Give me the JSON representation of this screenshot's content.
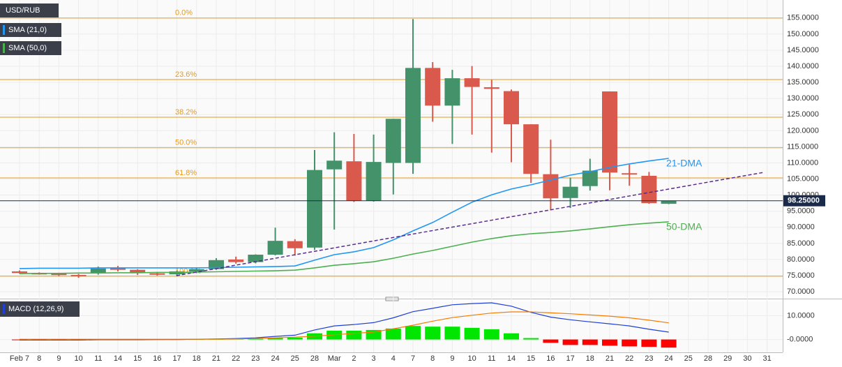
{
  "chart_data": [
    {
      "type": "candlestick",
      "title": "USD/RUB",
      "categories": [
        "Feb 7",
        "8",
        "9",
        "10",
        "11",
        "14",
        "15",
        "16",
        "17",
        "18",
        "21",
        "22",
        "23",
        "24",
        "25",
        "28",
        "Mar",
        "2",
        "3",
        "4",
        "7",
        "8",
        "9",
        "10",
        "11",
        "14",
        "15",
        "16",
        "17",
        "18",
        "21",
        "22",
        "23",
        "24",
        "25",
        "28",
        "29",
        "30",
        "31"
      ],
      "open": [
        76.3,
        75.8,
        75.6,
        75.2,
        75.7,
        77.5,
        76.8,
        75.7,
        75.4,
        76.3,
        77.0,
        80.0,
        79.2,
        81.5,
        85.7,
        83.7,
        108.0,
        110.5,
        98.2,
        110.0,
        110.0,
        139.5,
        127.8,
        136.3,
        133.5,
        132.3,
        122.0,
        106.5,
        99.1,
        102.8,
        132.2,
        106.8,
        106.0,
        97.3,
        null,
        null,
        null,
        null,
        null
      ],
      "high": [
        76.6,
        76.0,
        75.9,
        75.5,
        77.8,
        78.0,
        77.0,
        76.1,
        76.6,
        77.5,
        80.4,
        80.9,
        81.6,
        89.9,
        86.3,
        114.0,
        119.5,
        119.0,
        118.8,
        123.7,
        154.7,
        141.3,
        138.9,
        140.1,
        135.8,
        132.8,
        122.0,
        117.2,
        105.4,
        111.3,
        132.2,
        109.5,
        107.2,
        98.3,
        null,
        null,
        null,
        null,
        null
      ],
      "low": [
        75.6,
        75.3,
        74.9,
        74.3,
        75.3,
        76.3,
        75.2,
        75.0,
        74.8,
        75.8,
        76.8,
        78.7,
        78.8,
        81.3,
        81.2,
        83.0,
        89.3,
        97.9,
        98.0,
        100.2,
        106.6,
        122.8,
        115.9,
        118.8,
        113.2,
        110.2,
        103.8,
        95.3,
        96.0,
        101.4,
        101.5,
        102.9,
        97.3,
        97.2,
        null,
        null,
        null,
        null,
        null
      ],
      "close": [
        75.8,
        75.6,
        75.2,
        74.8,
        77.2,
        76.8,
        75.8,
        75.3,
        76.3,
        77.0,
        79.8,
        79.2,
        81.5,
        85.8,
        83.5,
        107.8,
        110.7,
        98.2,
        110.3,
        123.7,
        139.5,
        127.8,
        136.3,
        133.6,
        133.0,
        122.0,
        106.6,
        99.0,
        102.6,
        107.6,
        107.0,
        106.6,
        97.5,
        98.25,
        null,
        null,
        null,
        null,
        null
      ],
      "up_color": "#43926a",
      "down_color": "#d9594c",
      "series": [
        {
          "name": "SMA (21,0)",
          "label": "21-DMA",
          "color": "#2196f3",
          "values": [
            77.2,
            77.3,
            77.3,
            77.3,
            77.4,
            77.4,
            77.4,
            77.4,
            77.4,
            77.4,
            77.5,
            77.6,
            77.7,
            77.8,
            78.0,
            79.8,
            81.5,
            82.4,
            83.7,
            86.1,
            88.9,
            91.5,
            94.7,
            97.8,
            100.1,
            101.9,
            103.2,
            104.7,
            106.2,
            107.3,
            108.6,
            109.7,
            110.6,
            111.4,
            null,
            null,
            null,
            null,
            null
          ]
        },
        {
          "name": "SMA (50,0)",
          "label": "50-DMA",
          "color": "#4caf50",
          "values": [
            75.6,
            75.7,
            75.7,
            75.8,
            75.8,
            75.9,
            75.9,
            76.0,
            76.0,
            76.1,
            76.2,
            76.3,
            76.4,
            76.5,
            76.7,
            77.4,
            78.2,
            78.7,
            79.3,
            80.4,
            81.7,
            82.8,
            84.1,
            85.4,
            86.5,
            87.4,
            88.0,
            88.4,
            88.9,
            89.5,
            90.2,
            90.8,
            91.3,
            91.7,
            null,
            null,
            null,
            null,
            null
          ]
        }
      ],
      "fib_color": "#e69a1b",
      "fib_levels": [
        {
          "value": 155,
          "label": "0.0%"
        },
        {
          "value": 135.9,
          "label": "23.6%"
        },
        {
          "value": 124.2,
          "label": "38.2%"
        },
        {
          "value": 114.7,
          "label": "50.0%"
        },
        {
          "value": 105.35,
          "label": "61.8%"
        },
        {
          "value": 74.8,
          "label": "100.0%"
        }
      ],
      "last_price": {
        "value": 98.25,
        "label": "98.25000"
      },
      "ylim": [
        68.5,
        160.6
      ],
      "yticks": [
        {
          "value": 155,
          "label": "155.0000"
        },
        {
          "value": 150,
          "label": "150.0000"
        },
        {
          "value": 145,
          "label": "145.0000"
        },
        {
          "value": 140,
          "label": "140.0000"
        },
        {
          "value": 135,
          "label": "135.0000"
        },
        {
          "value": 130,
          "label": "130.0000"
        },
        {
          "value": 125,
          "label": "125.0000"
        },
        {
          "value": 120,
          "label": "120.0000"
        },
        {
          "value": 115,
          "label": "115.0000"
        },
        {
          "value": 110,
          "label": "110.0000"
        },
        {
          "value": 105,
          "label": "105.0000"
        },
        {
          "value": 100,
          "label": "100.0000"
        },
        {
          "value": 95,
          "label": "95.0000"
        },
        {
          "value": 90,
          "label": "90.0000"
        },
        {
          "value": 85,
          "label": "85.0000"
        },
        {
          "value": 80,
          "label": "80.0000"
        },
        {
          "value": 75,
          "label": "75.0000"
        },
        {
          "value": 70,
          "label": "70.0000"
        }
      ],
      "grid": true
    },
    {
      "type": "macd",
      "title": "MACD (12,26,9)",
      "histogram": [
        -0.3,
        -0.3,
        -0.3,
        -0.3,
        -0.2,
        -0.2,
        -0.2,
        -0.1,
        -0.1,
        0.0,
        0.1,
        0.2,
        0.3,
        0.6,
        0.8,
        2.6,
        3.7,
        3.7,
        4.0,
        4.6,
        5.7,
        5.4,
        5.4,
        4.9,
        4.3,
        2.6,
        0.6,
        -1.4,
        -2.3,
        -2.3,
        -2.6,
        -2.9,
        -3.1,
        -3.4,
        null,
        null,
        null,
        null,
        null
      ],
      "up_color": "#00e600",
      "down_color": "#ff0000",
      "series": [
        {
          "color": "#1f3fd6",
          "values": [
            -0.2,
            -0.2,
            -0.2,
            -0.2,
            -0.1,
            -0.1,
            -0.1,
            0.0,
            0.0,
            0.1,
            0.2,
            0.4,
            0.7,
            1.3,
            1.8,
            4.0,
            5.7,
            6.3,
            7.1,
            9.1,
            11.7,
            13.1,
            14.6,
            15.1,
            15.4,
            14.0,
            11.4,
            9.4,
            8.3,
            7.4,
            6.6,
            5.7,
            4.3,
            3.1,
            null,
            null,
            null,
            null,
            null
          ]
        },
        {
          "color": "#f57c00",
          "values": [
            0.1,
            0.1,
            0.1,
            0.1,
            0.1,
            0.1,
            0.1,
            0.1,
            0.1,
            0.1,
            0.1,
            0.2,
            0.4,
            0.7,
            1.0,
            1.4,
            2.0,
            2.6,
            3.1,
            4.5,
            6.0,
            7.7,
            9.2,
            10.2,
            11.1,
            11.6,
            11.6,
            11.2,
            10.8,
            10.3,
            9.8,
            9.1,
            8.1,
            7.0,
            null,
            null,
            null,
            null,
            null
          ]
        }
      ],
      "ylim": [
        -5.4,
        16
      ],
      "yticks": [
        {
          "value": 10,
          "label": "10.0000"
        },
        {
          "value": 0,
          "label": "-0.0000"
        }
      ],
      "grid": true
    }
  ]
}
